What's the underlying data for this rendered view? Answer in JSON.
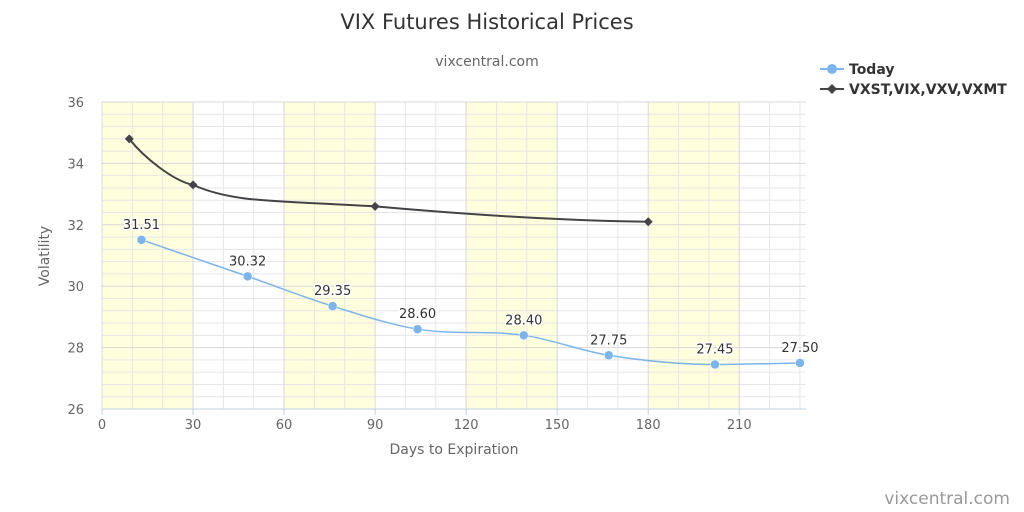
{
  "chart_data": {
    "type": "line",
    "title": "VIX Futures Historical Prices",
    "subtitle": "vixcentral.com",
    "xlabel": "Days to Expiration",
    "ylabel": "Volatility",
    "credit": "vixcentral.com",
    "xlim": [
      0,
      232
    ],
    "ylim": [
      26,
      36
    ],
    "x_ticks": [
      0,
      30,
      60,
      90,
      120,
      150,
      180,
      210
    ],
    "y_ticks": [
      26,
      28,
      30,
      32,
      34,
      36
    ],
    "shaded_bands": [
      [
        0,
        30
      ],
      [
        60,
        90
      ],
      [
        120,
        150
      ],
      [
        180,
        210
      ]
    ],
    "grid": true,
    "legend_position": "top-right",
    "series": [
      {
        "name": "Today",
        "color": "#7cb5ec",
        "marker": "circle",
        "x": [
          13,
          48,
          76,
          104,
          139,
          167,
          202,
          230
        ],
        "values": [
          31.51,
          30.32,
          29.35,
          28.6,
          28.4,
          27.75,
          27.45,
          27.5
        ],
        "labels": [
          "31.51",
          "30.32",
          "29.35",
          "28.60",
          "28.40",
          "27.75",
          "27.45",
          "27.50"
        ]
      },
      {
        "name": "VXST,VIX,VXV,VXMT",
        "color": "#434348",
        "marker": "diamond",
        "x": [
          9,
          30,
          90,
          180
        ],
        "values": [
          34.8,
          33.3,
          32.6,
          32.1
        ]
      }
    ]
  }
}
